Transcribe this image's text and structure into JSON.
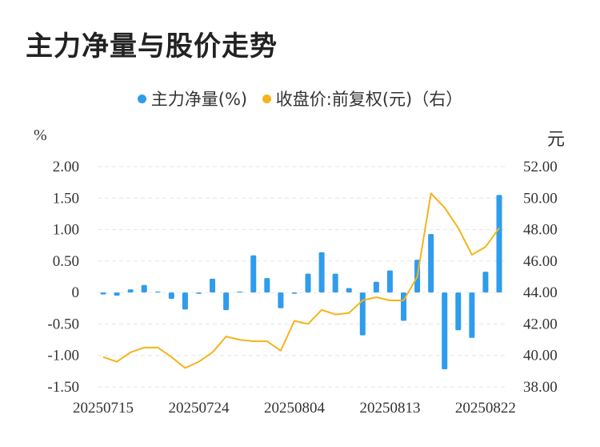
{
  "title": "主力净量与股价走势",
  "legend": {
    "series1": "主力净量(%)",
    "series2": "收盘价:前复权(元)（右）"
  },
  "colors": {
    "bar": "#2f9cec",
    "line": "#f4b41a",
    "grid": "#e6e6e6"
  },
  "chart_data": {
    "type": "bar+line",
    "left_axis": {
      "unit": "%",
      "ylim": [
        -1.5,
        2.0
      ],
      "ticks": [
        "2.00",
        "1.50",
        "1.00",
        "0.50",
        "0",
        "-0.50",
        "-1.00",
        "-1.50"
      ]
    },
    "right_axis": {
      "unit": "元",
      "ylim": [
        38.0,
        52.0
      ],
      "ticks": [
        "52.00",
        "50.00",
        "48.00",
        "46.00",
        "44.00",
        "42.00",
        "40.00",
        "38.00"
      ]
    },
    "x_tick_labels": [
      "20250715",
      "20250724",
      "20250804",
      "20250813",
      "20250822"
    ],
    "x_tick_indices": [
      0,
      7,
      14,
      21,
      28
    ],
    "grid": "horizontal dashed",
    "series": [
      {
        "name": "主力净量(%)",
        "type": "bar",
        "axis": "left",
        "values": [
          -0.03,
          -0.05,
          0.05,
          0.12,
          0.0,
          -0.1,
          -0.27,
          -0.02,
          0.22,
          -0.28,
          0.01,
          0.59,
          0.23,
          -0.25,
          -0.02,
          0.3,
          0.64,
          0.3,
          0.07,
          -0.68,
          0.17,
          0.35,
          -0.45,
          0.52,
          0.93,
          -1.22,
          -0.6,
          -0.72,
          0.33,
          1.55
        ]
      },
      {
        "name": "收盘价:前复权(元)（右）",
        "type": "line",
        "axis": "right",
        "values": [
          39.9,
          39.6,
          40.2,
          40.5,
          40.5,
          39.9,
          39.2,
          39.6,
          40.2,
          41.2,
          41.0,
          40.9,
          40.9,
          40.3,
          42.2,
          42.0,
          42.9,
          42.6,
          42.7,
          43.5,
          43.7,
          43.5,
          43.5,
          45.0,
          50.3,
          49.4,
          48.1,
          46.4,
          46.9,
          48.1
        ]
      }
    ]
  }
}
